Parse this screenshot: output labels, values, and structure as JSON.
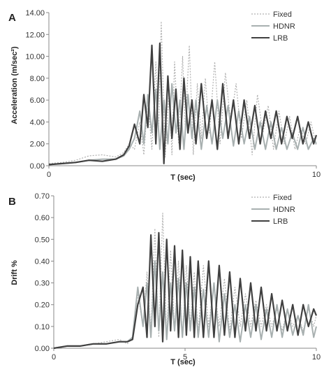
{
  "chart_data": [
    {
      "panel_label": "A",
      "type": "line",
      "xlabel": "T (sec)",
      "ylabel": "Acceleration (m/sec²)",
      "xlim": [
        0,
        10
      ],
      "ylim": [
        0,
        14
      ],
      "x_ticks": [
        {
          "v": 0,
          "label": "0"
        },
        {
          "v": 10,
          "label": "10"
        }
      ],
      "y_ticks": [
        {
          "v": 0,
          "label": "0.00"
        },
        {
          "v": 2,
          "label": "2.00"
        },
        {
          "v": 4,
          "label": "4.00"
        },
        {
          "v": 6,
          "label": "6.00"
        },
        {
          "v": 8,
          "label": "8.00"
        },
        {
          "v": 10,
          "label": "10.00"
        },
        {
          "v": 12,
          "label": "12.00"
        },
        {
          "v": 14,
          "label": "14.00"
        }
      ],
      "legend_position": "top-right",
      "grid": false,
      "series": [
        {
          "name": "Fixed",
          "color": "#b0b0b0",
          "style": "dotted",
          "x": [
            0,
            0.5,
            1.0,
            1.5,
            2.0,
            2.5,
            2.8,
            3.0,
            3.2,
            3.4,
            3.55,
            3.7,
            3.85,
            4.0,
            4.1,
            4.2,
            4.35,
            4.5,
            4.6,
            4.7,
            4.85,
            5.0,
            5.1,
            5.25,
            5.4,
            5.55,
            5.7,
            5.85,
            6.0,
            6.2,
            6.4,
            6.6,
            6.8,
            7.0,
            7.2,
            7.4,
            7.6,
            7.8,
            8.0,
            8.2,
            8.4,
            8.6,
            8.8,
            9.0,
            9.2,
            9.4,
            9.6,
            9.8,
            10.0
          ],
          "y": [
            0.2,
            0.3,
            0.5,
            0.9,
            1.0,
            0.8,
            1.2,
            2.0,
            1.5,
            4.0,
            1.0,
            6.0,
            1.5,
            9.5,
            3.0,
            13.2,
            0.8,
            7.0,
            1.0,
            9.5,
            2.0,
            10.0,
            3.5,
            11.0,
            1.0,
            7.5,
            2.5,
            8.0,
            3.0,
            9.5,
            2.0,
            8.5,
            4.0,
            7.5,
            2.5,
            6.0,
            1.0,
            6.5,
            3.0,
            5.5,
            1.5,
            5.0,
            2.0,
            4.5,
            1.5,
            3.5,
            2.0,
            4.0,
            1.8
          ]
        },
        {
          "name": "HDNR",
          "color": "#a8b0b0",
          "style": "solid",
          "x": [
            0,
            0.5,
            1.0,
            1.5,
            2.0,
            2.5,
            2.8,
            3.0,
            3.2,
            3.4,
            3.55,
            3.7,
            3.85,
            4.0,
            4.15,
            4.3,
            4.45,
            4.6,
            4.75,
            4.9,
            5.05,
            5.2,
            5.35,
            5.5,
            5.7,
            5.9,
            6.1,
            6.3,
            6.5,
            6.7,
            6.9,
            7.1,
            7.3,
            7.5,
            7.7,
            7.9,
            8.1,
            8.3,
            8.5,
            8.7,
            8.9,
            9.1,
            9.3,
            9.5,
            9.7,
            9.9,
            10.0
          ],
          "y": [
            0.1,
            0.2,
            0.3,
            0.5,
            0.6,
            0.6,
            0.9,
            1.5,
            2.5,
            5.0,
            2.0,
            6.5,
            3.0,
            7.0,
            1.5,
            6.0,
            2.0,
            7.5,
            3.0,
            6.0,
            1.5,
            6.5,
            2.5,
            6.0,
            1.5,
            5.5,
            2.0,
            6.0,
            2.5,
            5.5,
            1.8,
            5.0,
            2.0,
            4.5,
            1.5,
            4.0,
            1.5,
            4.0,
            1.5,
            3.5,
            1.5,
            3.0,
            1.5,
            3.5,
            1.5,
            2.5,
            2.0
          ]
        },
        {
          "name": "LRB",
          "color": "#404040",
          "style": "solid",
          "x": [
            0,
            0.5,
            1.0,
            1.5,
            2.0,
            2.5,
            2.8,
            3.0,
            3.2,
            3.4,
            3.55,
            3.7,
            3.85,
            4.0,
            4.15,
            4.3,
            4.45,
            4.6,
            4.75,
            4.9,
            5.05,
            5.2,
            5.35,
            5.5,
            5.7,
            5.9,
            6.1,
            6.3,
            6.5,
            6.7,
            6.9,
            7.1,
            7.3,
            7.5,
            7.7,
            7.9,
            8.1,
            8.3,
            8.5,
            8.7,
            8.9,
            9.1,
            9.3,
            9.5,
            9.7,
            9.9,
            10.0
          ],
          "y": [
            0.1,
            0.2,
            0.3,
            0.5,
            0.4,
            0.6,
            1.0,
            1.8,
            3.8,
            2.0,
            6.5,
            3.5,
            11.0,
            2.0,
            11.2,
            0.2,
            8.2,
            2.5,
            7.0,
            1.5,
            8.0,
            3.0,
            6.0,
            2.0,
            7.5,
            2.5,
            6.0,
            1.5,
            7.5,
            2.5,
            6.0,
            2.0,
            6.0,
            2.5,
            5.5,
            2.0,
            5.0,
            2.5,
            5.0,
            2.0,
            4.5,
            2.5,
            4.5,
            2.0,
            4.0,
            2.0,
            2.8
          ]
        }
      ]
    },
    {
      "panel_label": "B",
      "type": "line",
      "xlabel": "T (sec)",
      "ylabel": "Drift %",
      "xlim": [
        0,
        10
      ],
      "ylim": [
        0,
        0.7
      ],
      "x_ticks": [
        {
          "v": 0,
          "label": "0"
        },
        {
          "v": 5,
          "label": "5"
        },
        {
          "v": 10,
          "label": "10"
        }
      ],
      "y_ticks": [
        {
          "v": 0,
          "label": "0.00"
        },
        {
          "v": 0.1,
          "label": "0.10"
        },
        {
          "v": 0.2,
          "label": "0.20"
        },
        {
          "v": 0.3,
          "label": "0.30"
        },
        {
          "v": 0.4,
          "label": "0.40"
        },
        {
          "v": 0.5,
          "label": "0.50"
        },
        {
          "v": 0.6,
          "label": "0.60"
        },
        {
          "v": 0.7,
          "label": "0.70"
        }
      ],
      "legend_position": "top-right",
      "grid": false,
      "series": [
        {
          "name": "Fixed",
          "color": "#b0b0b0",
          "style": "dotted",
          "x": [
            0,
            0.5,
            1.0,
            1.5,
            2.0,
            2.5,
            2.8,
            3.0,
            3.2,
            3.4,
            3.55,
            3.7,
            3.85,
            4.0,
            4.15,
            4.3,
            4.45,
            4.6,
            4.75,
            4.9,
            5.05,
            5.2,
            5.35,
            5.5,
            5.7,
            5.9,
            6.1,
            6.3,
            6.5,
            6.7,
            6.9,
            7.1,
            7.3,
            7.5,
            7.7,
            7.9,
            8.1,
            8.3,
            8.5,
            8.7,
            8.9,
            9.1,
            9.3,
            9.5,
            9.7,
            9.9,
            10.0
          ],
          "y": [
            0.0,
            0.01,
            0.01,
            0.02,
            0.03,
            0.04,
            0.02,
            0.05,
            0.25,
            0.1,
            0.35,
            0.08,
            0.55,
            0.05,
            0.62,
            0.05,
            0.45,
            0.08,
            0.4,
            0.05,
            0.38,
            0.1,
            0.35,
            0.08,
            0.38,
            0.1,
            0.3,
            0.1,
            0.32,
            0.08,
            0.28,
            0.1,
            0.25,
            0.1,
            0.22,
            0.1,
            0.2,
            0.1,
            0.18,
            0.08,
            0.18,
            0.1,
            0.15,
            0.08,
            0.18,
            0.1,
            0.15
          ]
        },
        {
          "name": "HDNR",
          "color": "#a8b0b0",
          "style": "solid",
          "x": [
            0,
            0.5,
            1.0,
            1.5,
            2.0,
            2.5,
            2.8,
            3.0,
            3.2,
            3.4,
            3.55,
            3.7,
            3.85,
            4.0,
            4.15,
            4.3,
            4.45,
            4.6,
            4.75,
            4.9,
            5.05,
            5.2,
            5.35,
            5.5,
            5.7,
            5.9,
            6.1,
            6.3,
            6.5,
            6.7,
            6.9,
            7.1,
            7.3,
            7.5,
            7.7,
            7.9,
            8.1,
            8.3,
            8.5,
            8.7,
            8.9,
            9.1,
            9.3,
            9.5,
            9.7,
            9.9,
            10.0
          ],
          "y": [
            0.0,
            0.01,
            0.01,
            0.02,
            0.02,
            0.03,
            0.03,
            0.05,
            0.28,
            0.1,
            0.3,
            0.05,
            0.4,
            0.08,
            0.35,
            0.04,
            0.3,
            0.08,
            0.32,
            0.05,
            0.3,
            0.08,
            0.28,
            0.05,
            0.27,
            0.05,
            0.3,
            0.03,
            0.25,
            0.05,
            0.2,
            0.03,
            0.2,
            0.05,
            0.2,
            0.04,
            0.18,
            0.05,
            0.2,
            0.05,
            0.18,
            0.06,
            0.15,
            0.06,
            0.2,
            0.05,
            0.1
          ]
        },
        {
          "name": "LRB",
          "color": "#404040",
          "style": "solid",
          "x": [
            0,
            0.5,
            1.0,
            1.5,
            2.0,
            2.5,
            2.8,
            3.0,
            3.2,
            3.4,
            3.55,
            3.7,
            3.85,
            4.0,
            4.15,
            4.3,
            4.45,
            4.6,
            4.75,
            4.9,
            5.05,
            5.2,
            5.35,
            5.5,
            5.7,
            5.9,
            6.1,
            6.3,
            6.5,
            6.7,
            6.9,
            7.1,
            7.3,
            7.5,
            7.7,
            7.9,
            8.1,
            8.3,
            8.5,
            8.7,
            8.9,
            9.1,
            9.3,
            9.5,
            9.7,
            9.9,
            10.0
          ],
          "y": [
            0.0,
            0.01,
            0.01,
            0.02,
            0.02,
            0.03,
            0.03,
            0.04,
            0.2,
            0.28,
            0.05,
            0.52,
            0.1,
            0.53,
            0.03,
            0.5,
            0.08,
            0.47,
            0.05,
            0.45,
            0.06,
            0.42,
            0.05,
            0.4,
            0.05,
            0.4,
            0.05,
            0.38,
            0.06,
            0.35,
            0.05,
            0.32,
            0.08,
            0.3,
            0.08,
            0.28,
            0.08,
            0.25,
            0.08,
            0.22,
            0.08,
            0.2,
            0.06,
            0.2,
            0.1,
            0.18,
            0.15
          ]
        }
      ]
    }
  ]
}
